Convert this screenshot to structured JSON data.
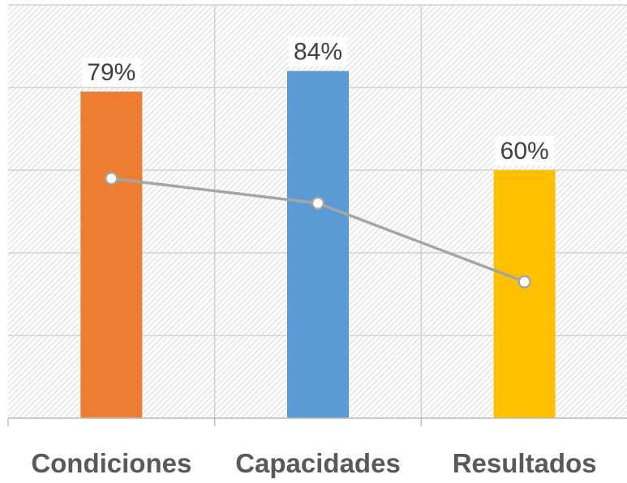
{
  "chart_data": {
    "type": "bar",
    "categories": [
      "Condiciones",
      "Capacidades",
      "Resultados"
    ],
    "series": [
      {
        "values": [
          79,
          84,
          60
        ],
        "data_labels": [
          "79%",
          "84%",
          "60%"
        ],
        "colors": [
          "#ED7D31",
          "#5B9BD5",
          "#FFC000"
        ]
      },
      {
        "type": "line",
        "values": [
          58,
          52,
          33
        ],
        "color": "#A5A5A5"
      }
    ],
    "title": "",
    "xlabel": "",
    "ylabel": "",
    "ylim": [
      0,
      100
    ],
    "grid": true,
    "background_pattern": "diagonal-hatch",
    "legend": "none"
  }
}
